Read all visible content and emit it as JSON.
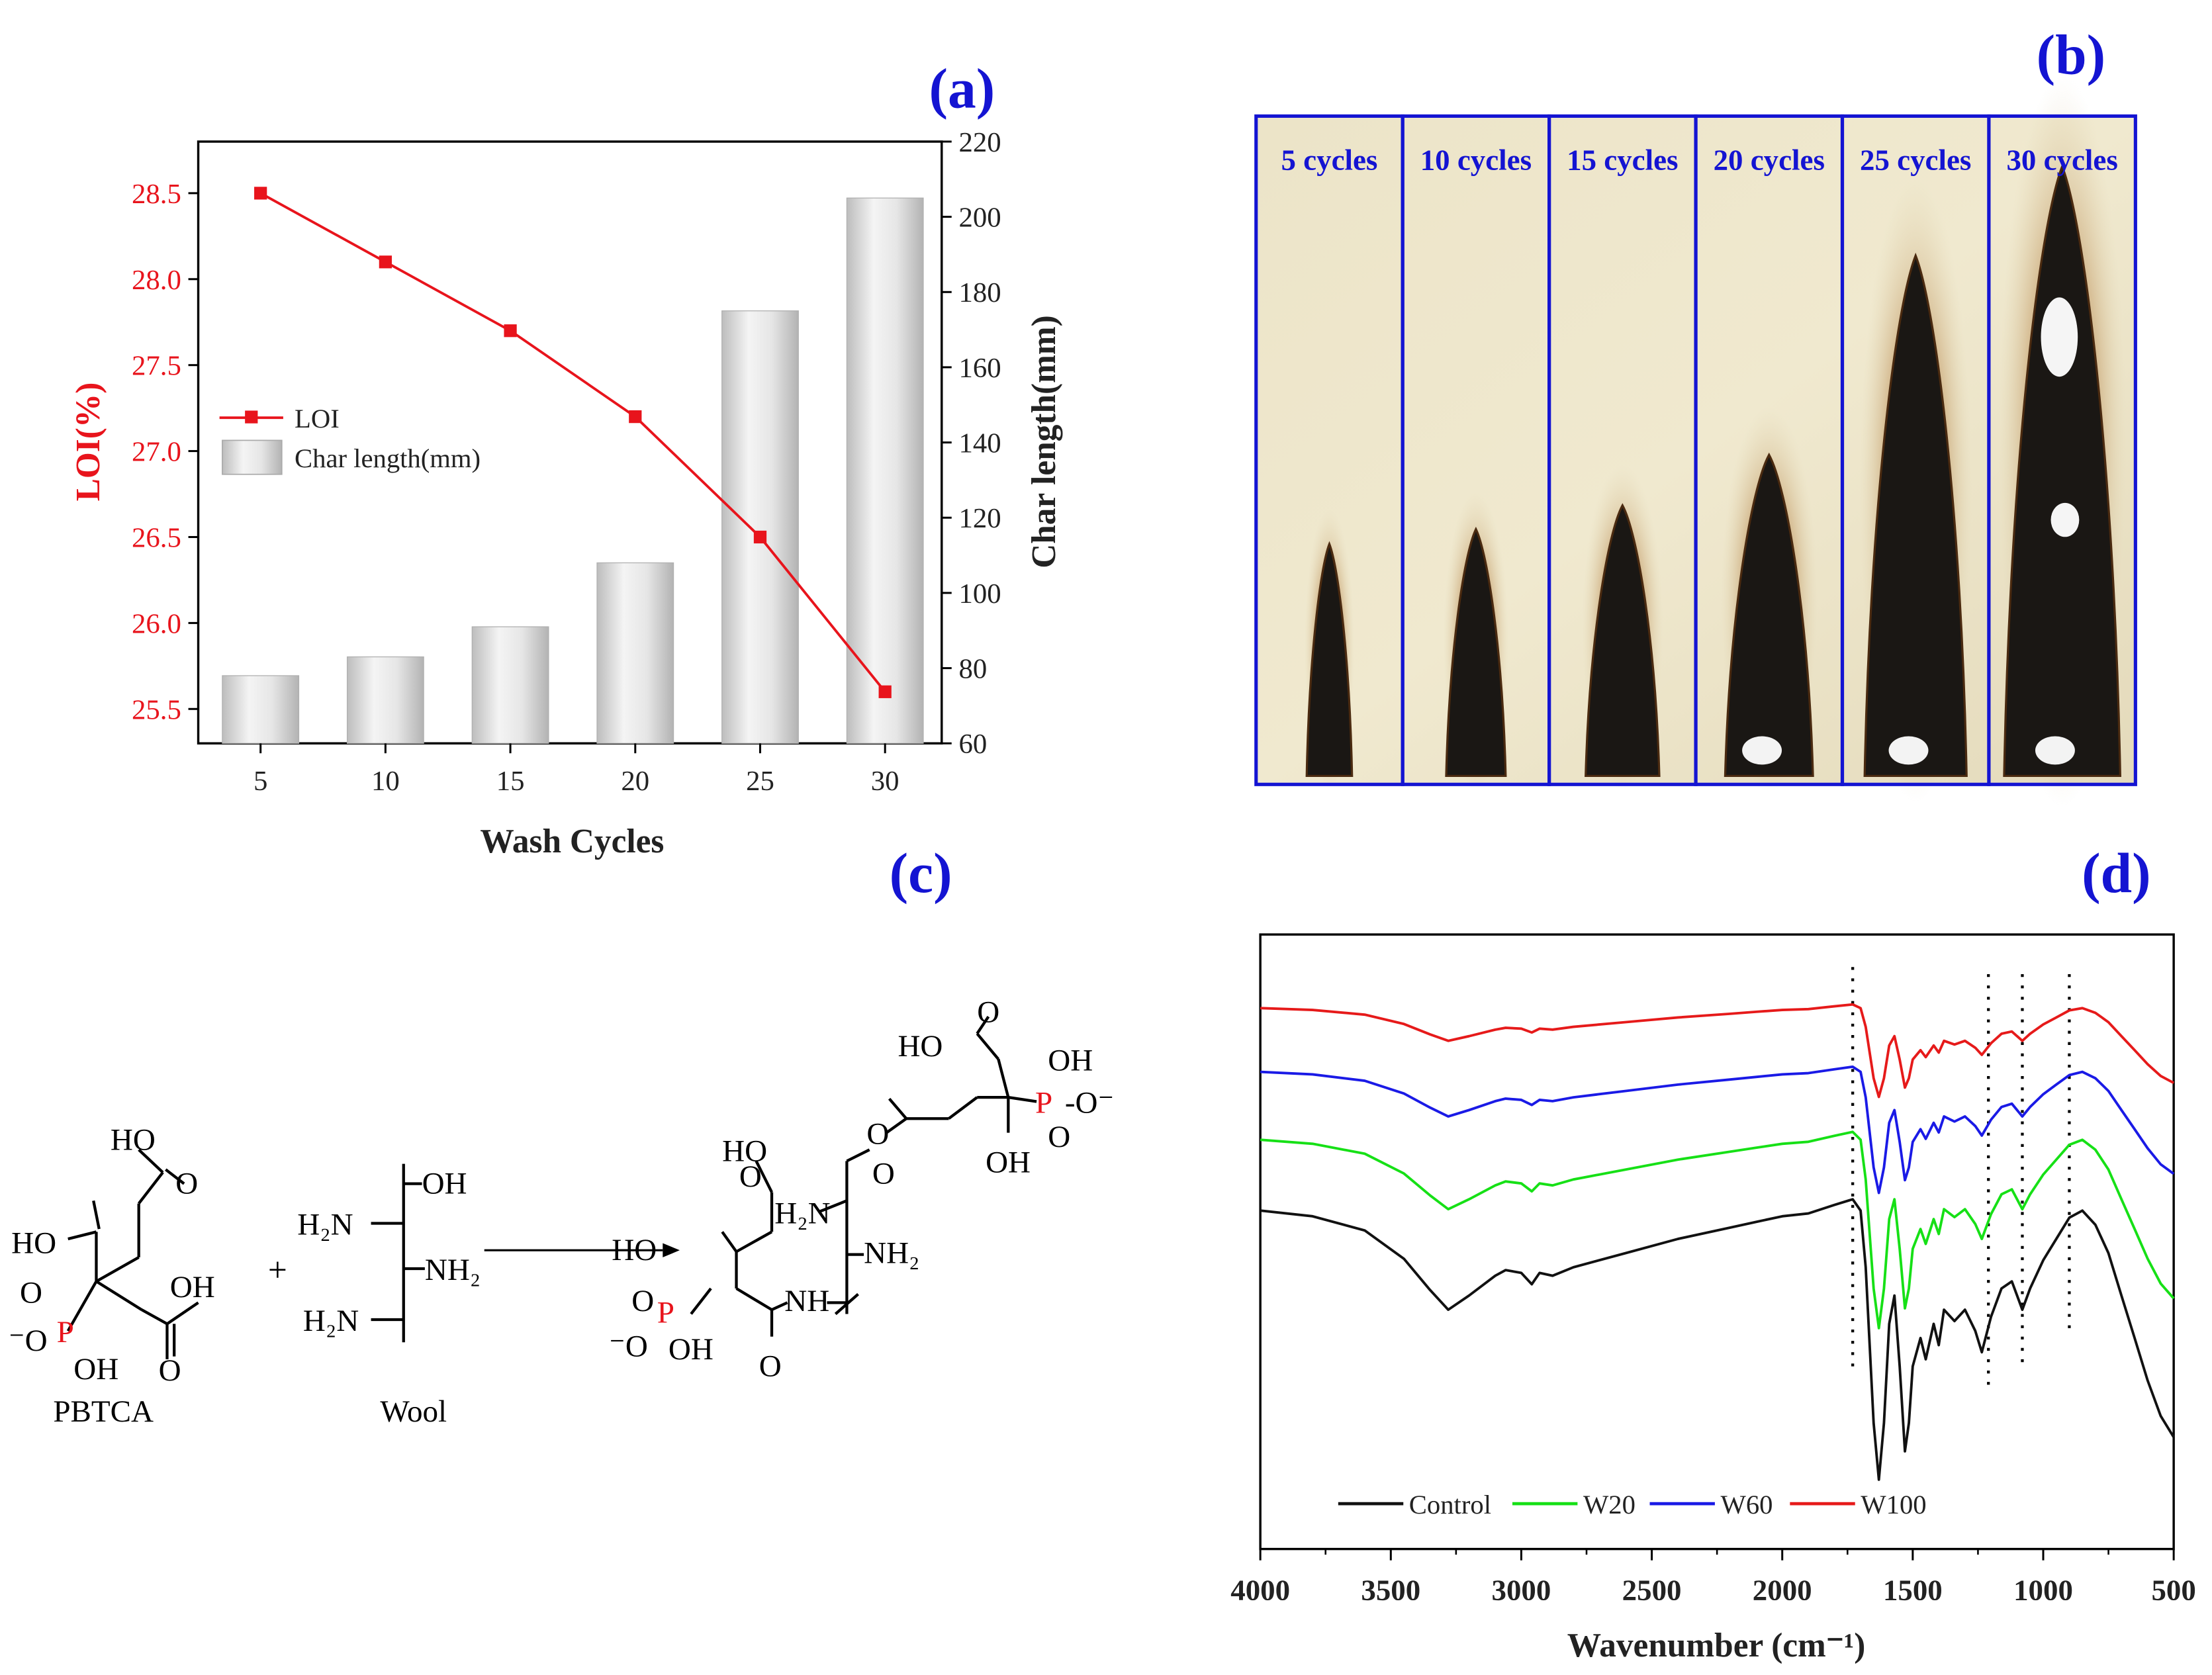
{
  "panels": {
    "a": {
      "label": "(a)",
      "chart_data": {
        "type": "bar+line",
        "categories": [
          "5",
          "10",
          "15",
          "20",
          "25",
          "30"
        ],
        "xlabel": "Wash Cycles",
        "series": [
          {
            "name": "LOI",
            "type": "line",
            "axis": "left",
            "color": "#e8141c",
            "values": [
              28.5,
              28.1,
              27.7,
              27.2,
              26.5,
              25.6
            ]
          },
          {
            "name": "Char length(mm)",
            "type": "bar",
            "axis": "right",
            "color": "#cfcfcf",
            "values": [
              78,
              83,
              91,
              108,
              175,
              205
            ]
          }
        ],
        "left_axis": {
          "label": "LOI(%)",
          "ylim": [
            25.3,
            28.8
          ],
          "ticks": [
            "25.5",
            "26.0",
            "26.5",
            "27.0",
            "27.5",
            "28.0",
            "28.5"
          ],
          "tick_values": [
            25.5,
            26.0,
            26.5,
            27.0,
            27.5,
            28.0,
            28.5
          ],
          "color": "#e8141c"
        },
        "right_axis": {
          "label": "Char length(mm)",
          "ylim": [
            60,
            220
          ],
          "ticks": [
            "60",
            "80",
            "100",
            "120",
            "140",
            "160",
            "180",
            "200",
            "220"
          ],
          "tick_values": [
            60,
            80,
            100,
            120,
            140,
            160,
            180,
            200,
            220
          ]
        },
        "legend": [
          {
            "name": "LOI"
          },
          {
            "name": "Char length(mm)"
          }
        ],
        "legend_placement": "center-left"
      }
    },
    "b": {
      "label": "(b)",
      "photo_labels": [
        "5 cycles",
        "10 cycles",
        "15 cycles",
        "20 cycles",
        "25 cycles",
        "30 cycles"
      ],
      "char_lengths_mm": [
        78,
        83,
        91,
        108,
        175,
        205
      ]
    },
    "c": {
      "label": "(c)",
      "reactant1_name": "PBTCA",
      "reactant2_name": "Wool",
      "plus": "+"
    },
    "d": {
      "label": "(d)",
      "chart_data": {
        "type": "line",
        "title": "",
        "xlabel": "Wavenumber (cm⁻¹)",
        "xlim": [
          4000,
          500
        ],
        "x_reversed": true,
        "x_ticks": [
          "4000",
          "3500",
          "3000",
          "2500",
          "2000",
          "1500",
          "1000",
          "500"
        ],
        "x_tick_values": [
          4000,
          3500,
          3000,
          2500,
          2000,
          1500,
          1000,
          500
        ],
        "y_ticks_shown": false,
        "marker_lines_cm": [
          1730,
          1210,
          1080,
          900
        ],
        "series": [
          {
            "name": "Control",
            "color": "#111111"
          },
          {
            "name": "W20",
            "color": "#16e016"
          },
          {
            "name": "W60",
            "color": "#1a1ae6"
          },
          {
            "name": "W100",
            "color": "#e61a1a"
          }
        ],
        "legend_placement": "bottom-center"
      }
    }
  }
}
